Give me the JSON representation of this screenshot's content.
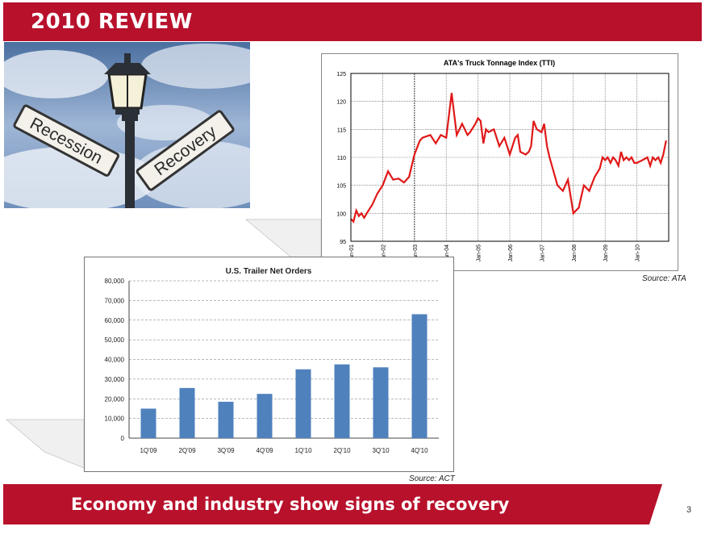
{
  "slide": {
    "title": "2010 REVIEW",
    "footer": "Economy and industry show signs of recovery",
    "page_number": "3"
  },
  "colors": {
    "brand_red": "#b8112b",
    "tti_line": "#e01818",
    "bar_fill": "#4f81bd"
  },
  "photo": {
    "sign_left": "Recession",
    "sign_right": "Recovery"
  },
  "chart_data": [
    {
      "type": "line",
      "title": "ATA's Truck Tonnage Index (TTI)",
      "source": "Source: ATA",
      "ylim": [
        95,
        125
      ],
      "yticks": [
        "125",
        "120",
        "115",
        "110",
        "105",
        "100",
        "95"
      ],
      "xticks": [
        "Jan-01",
        "Jan-02",
        "Jan-03",
        "Jan-04",
        "Jan-05",
        "Jan-06",
        "Jan-07",
        "Jan-08",
        "Jan-09",
        "Jan-10"
      ],
      "grid": true,
      "series": [
        {
          "x": [
            2001.0,
            2001.08,
            2001.17,
            2001.25,
            2001.33,
            2001.42,
            2001.5,
            2001.67,
            2001.83,
            2002.0,
            2002.17,
            2002.33,
            2002.5,
            2002.67,
            2002.83,
            2003.0,
            2003.17,
            2003.25,
            2003.5,
            2003.67,
            2003.83,
            2004.0,
            2004.17,
            2004.33,
            2004.5,
            2004.67,
            2004.75,
            2004.92,
            2005.0,
            2005.08,
            2005.17,
            2005.25,
            2005.33,
            2005.5,
            2005.67,
            2005.83,
            2006.0,
            2006.17,
            2006.25,
            2006.33,
            2006.5,
            2006.6,
            2006.67,
            2006.75,
            2006.85,
            2007.0,
            2007.08,
            2007.17,
            2007.25,
            2007.5,
            2007.67,
            2007.83,
            2008.0,
            2008.17,
            2008.33,
            2008.5,
            2008.67,
            2008.83,
            2008.92,
            2009.0,
            2009.08,
            2009.17,
            2009.25,
            2009.33,
            2009.42,
            2009.5,
            2009.58,
            2009.67,
            2009.75,
            2009.83,
            2009.92,
            2010.0,
            2010.17,
            2010.33,
            2010.42,
            2010.5,
            2010.58,
            2010.67,
            2010.75,
            2010.83,
            2010.92
          ],
          "values": [
            99,
            98.5,
            100.5,
            99.5,
            100,
            99.2,
            100,
            101.5,
            103.5,
            105,
            107.5,
            106,
            106.2,
            105.5,
            106.5,
            110.5,
            113,
            113.5,
            114,
            112.5,
            114,
            113.5,
            121.5,
            114,
            116,
            114,
            114.5,
            116,
            117,
            116.5,
            112.5,
            115,
            114.5,
            115,
            112,
            113.5,
            110.5,
            113.5,
            114,
            111,
            110.5,
            111,
            112,
            116.5,
            115,
            114.5,
            116,
            112,
            110,
            105,
            104,
            106,
            100,
            101,
            105,
            104,
            106.5,
            108,
            110,
            109.5,
            110,
            109,
            110,
            109.5,
            108.5,
            111,
            109.5,
            110,
            109.5,
            110,
            109,
            109,
            109.5,
            110,
            108.5,
            110,
            109.5,
            110,
            109,
            110.5,
            113
          ]
        }
      ]
    },
    {
      "type": "bar",
      "title": "U.S. Trailer Net Orders",
      "source": "Source: ACT",
      "categories": [
        "1Q'09",
        "2Q'09",
        "3Q'09",
        "4Q'09",
        "1Q'10",
        "2Q'10",
        "3Q'10",
        "4Q'10"
      ],
      "values": [
        15000,
        25500,
        18500,
        22500,
        35000,
        37500,
        36000,
        63000
      ],
      "ylim": [
        0,
        80000
      ],
      "yticks": [
        "0",
        "10,000",
        "20,000",
        "30,000",
        "40,000",
        "50,000",
        "60,000",
        "70,000",
        "80,000"
      ],
      "grid": true
    }
  ]
}
